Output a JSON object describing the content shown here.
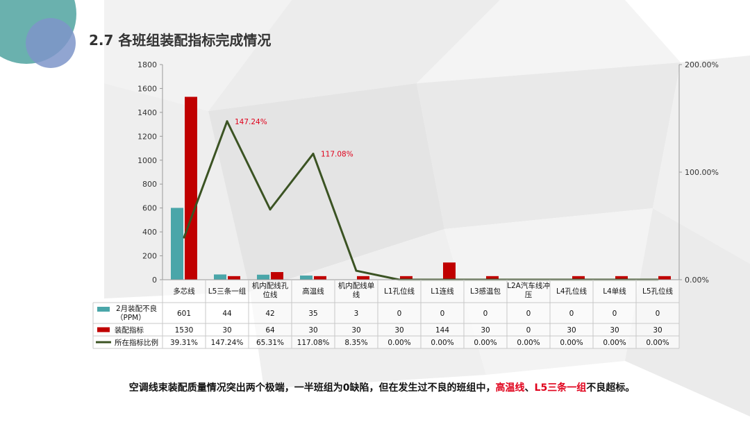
{
  "title": "2.7 各班组装配指标完成情况",
  "caption": {
    "pre": "空调线束装配质量情况突出两个极端，一半班组为0缺陷，但在发生过不良的班组中，",
    "hl1": "高温线",
    "sep": "、",
    "hl2": "L5三条一组",
    "post": "不良超标。"
  },
  "colors": {
    "defect": "#4aa6a9",
    "target": "#c00000",
    "ratio": "#3b5323",
    "label": "#e0001b"
  },
  "chart_data": {
    "type": "bar",
    "categories": [
      [
        "多芯线"
      ],
      [
        "L5三条一组"
      ],
      [
        "机内配线孔",
        "位线"
      ],
      [
        "高温线"
      ],
      [
        "机内配线单",
        "线"
      ],
      [
        "L1孔位线"
      ],
      [
        "L1连线"
      ],
      [
        "L3感温包"
      ],
      [
        "L2A汽车线冲",
        "压"
      ],
      [
        "L4孔位线"
      ],
      [
        "L4单线"
      ],
      [
        "L5孔位线"
      ]
    ],
    "y_ticks": [
      "0",
      "200",
      "400",
      "600",
      "800",
      "1000",
      "1200",
      "1400",
      "1600",
      "1800"
    ],
    "y2_ticks": [
      "0.00%",
      "100.00%",
      "200.00%"
    ],
    "ylim": [
      0,
      1800
    ],
    "y2lim": [
      0,
      2
    ],
    "series": [
      {
        "name": [
          "2月装配不良",
          "（PPM）"
        ],
        "kind": "bar",
        "values": [
          601,
          44,
          42,
          35,
          3,
          0,
          0,
          0,
          0,
          0,
          0,
          0
        ],
        "labels": [
          "601",
          "44",
          "42",
          "35",
          "3",
          "0",
          "0",
          "0",
          "0",
          "0",
          "0",
          "0"
        ]
      },
      {
        "name": [
          "装配指标"
        ],
        "kind": "bar",
        "values": [
          1530,
          30,
          64,
          30,
          30,
          30,
          144,
          30,
          0,
          30,
          30,
          30
        ],
        "labels": [
          "1530",
          "30",
          "64",
          "30",
          "30",
          "30",
          "144",
          "30",
          "0",
          "30",
          "30",
          "30"
        ]
      },
      {
        "name": [
          "所在指标比例"
        ],
        "kind": "line",
        "axis": "right",
        "values": [
          0.3931,
          1.4724,
          0.6531,
          1.1708,
          0.0835,
          0,
          0,
          0,
          0,
          0,
          0,
          0
        ],
        "labels": [
          "39.31%",
          "147.24%",
          "65.31%",
          "117.08%",
          "8.35%",
          "0.00%",
          "0.00%",
          "0.00%",
          "0.00%",
          "0.00%",
          "0.00%",
          "0.00%"
        ]
      }
    ],
    "data_labels": [
      {
        "index": 1,
        "text": "147.24%"
      },
      {
        "index": 3,
        "text": "117.08%"
      }
    ]
  }
}
